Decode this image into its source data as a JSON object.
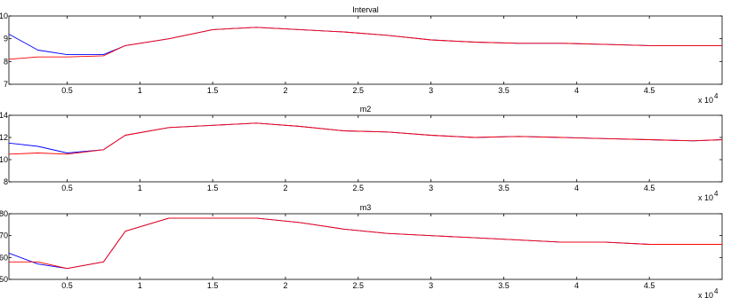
{
  "colors": {
    "series_blue": "#0000ff",
    "series_red": "#ff0000",
    "axes": "#000000"
  },
  "chart_data": [
    {
      "type": "line",
      "title": "Interval",
      "xlim": [
        1000,
        50000
      ],
      "ylim": [
        7,
        10
      ],
      "x_ticks": [
        5000,
        10000,
        15000,
        20000,
        25000,
        30000,
        35000,
        40000,
        45000
      ],
      "x_tick_labels": [
        "0.5",
        "1",
        "1.5",
        "2",
        "2.5",
        "3",
        "3.5",
        "4",
        "4.5"
      ],
      "y_ticks": [
        7,
        8,
        9,
        10
      ],
      "y_tick_labels": [
        "7",
        "8",
        "9",
        "10"
      ],
      "x_multiplier": "x 10",
      "x_exponent": "4",
      "grid": false,
      "x": [
        1000,
        3000,
        5000,
        7500,
        9000,
        12000,
        15000,
        18000,
        21000,
        24000,
        27000,
        30000,
        33000,
        36000,
        39000,
        42000,
        45000,
        48000,
        50000
      ],
      "series": [
        {
          "values": [
            9.2,
            8.5,
            8.3,
            8.3,
            8.7,
            9.0,
            9.4,
            9.5,
            9.4,
            9.3,
            9.15,
            8.95,
            8.85,
            8.8,
            8.8,
            8.75,
            8.7,
            8.7,
            8.7
          ]
        },
        {
          "values": [
            8.1,
            8.2,
            8.2,
            8.25,
            8.7,
            9.0,
            9.4,
            9.5,
            9.4,
            9.3,
            9.15,
            8.95,
            8.85,
            8.8,
            8.8,
            8.75,
            8.7,
            8.7,
            8.7
          ]
        }
      ]
    },
    {
      "type": "line",
      "title": "m2",
      "xlim": [
        1000,
        50000
      ],
      "ylim": [
        8,
        14
      ],
      "x_ticks": [
        5000,
        10000,
        15000,
        20000,
        25000,
        30000,
        35000,
        40000,
        45000
      ],
      "x_tick_labels": [
        "0.5",
        "1",
        "1.5",
        "2",
        "2.5",
        "3",
        "3.5",
        "4",
        "4.5"
      ],
      "y_ticks": [
        8,
        10,
        12,
        14
      ],
      "y_tick_labels": [
        "8",
        "10",
        "12",
        "14"
      ],
      "x_multiplier": "x 10",
      "x_exponent": "4",
      "grid": false,
      "x": [
        1000,
        3000,
        5000,
        7500,
        9000,
        12000,
        15000,
        18000,
        21000,
        24000,
        27000,
        30000,
        33000,
        36000,
        39000,
        42000,
        45000,
        48000,
        50000
      ],
      "series": [
        {
          "values": [
            11.5,
            11.2,
            10.6,
            10.9,
            12.2,
            12.9,
            13.1,
            13.3,
            13.0,
            12.6,
            12.5,
            12.2,
            12.0,
            12.1,
            12.0,
            11.9,
            11.8,
            11.7,
            11.8
          ]
        },
        {
          "values": [
            10.5,
            10.6,
            10.5,
            10.9,
            12.2,
            12.9,
            13.1,
            13.3,
            13.0,
            12.6,
            12.5,
            12.2,
            12.0,
            12.1,
            12.0,
            11.9,
            11.8,
            11.7,
            11.8
          ]
        }
      ]
    },
    {
      "type": "line",
      "title": "m3",
      "xlim": [
        1000,
        50000
      ],
      "ylim": [
        50,
        80
      ],
      "x_ticks": [
        5000,
        10000,
        15000,
        20000,
        25000,
        30000,
        35000,
        40000,
        45000
      ],
      "x_tick_labels": [
        "0.5",
        "1",
        "1.5",
        "2",
        "2.5",
        "3",
        "3.5",
        "4",
        "4.5"
      ],
      "y_ticks": [
        50,
        60,
        70,
        80
      ],
      "y_tick_labels": [
        "50",
        "60",
        "70",
        "80"
      ],
      "x_multiplier": "x 10",
      "x_exponent": "4",
      "grid": false,
      "x": [
        1000,
        3000,
        5000,
        7500,
        9000,
        12000,
        15000,
        18000,
        21000,
        24000,
        27000,
        30000,
        33000,
        36000,
        39000,
        42000,
        45000,
        48000,
        50000
      ],
      "series": [
        {
          "values": [
            62,
            57,
            55,
            58,
            72,
            78,
            78,
            78,
            76,
            73,
            71,
            70,
            69,
            68,
            67,
            67,
            66,
            66,
            66
          ]
        },
        {
          "values": [
            58,
            58,
            55,
            58,
            72,
            78,
            78,
            78,
            76,
            73,
            71,
            70,
            69,
            68,
            67,
            67,
            66,
            66,
            66
          ]
        }
      ]
    }
  ]
}
